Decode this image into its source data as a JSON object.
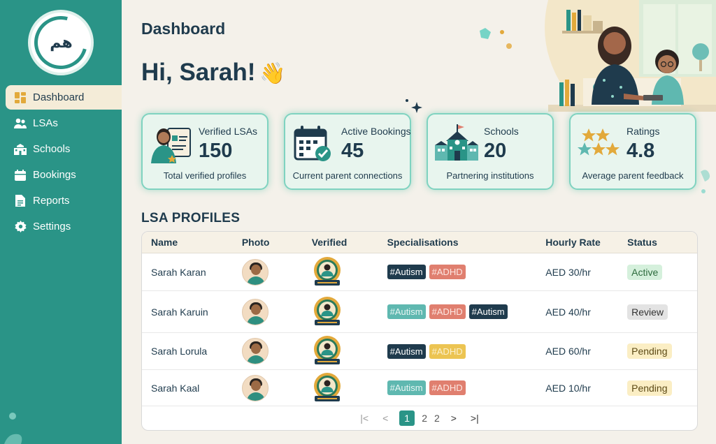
{
  "brand": {
    "logo_text": "هم",
    "brand_color": "#2a9487"
  },
  "sidebar": {
    "items": [
      {
        "label": "Dashboard",
        "icon": "dashboard-icon",
        "active": true
      },
      {
        "label": "LSAs",
        "icon": "users-icon",
        "active": false
      },
      {
        "label": "Schools",
        "icon": "school-icon",
        "active": false
      },
      {
        "label": "Bookings",
        "icon": "calendar-icon",
        "active": false
      },
      {
        "label": "Reports",
        "icon": "document-icon",
        "active": false
      },
      {
        "label": "Settings",
        "icon": "gear-icon",
        "active": false
      }
    ]
  },
  "header": {
    "title": "Dashboard",
    "greeting": "Hi, Sarah!",
    "greeting_emoji": "👋"
  },
  "stats": [
    {
      "label": "Verified LSAs",
      "value": "150",
      "sub": "Total verified profiles",
      "icon": "verified-profile-icon"
    },
    {
      "label": "Active Bookings",
      "value": "45",
      "sub": "Current parent connections",
      "icon": "calendar-check-icon"
    },
    {
      "label": "Schools",
      "value": "20",
      "sub": "Partnering institutions",
      "icon": "school-building-icon"
    },
    {
      "label": "Ratings",
      "value": "4.8",
      "sub": "Average parent feedback",
      "icon": "stars-icon"
    }
  ],
  "profiles": {
    "title": "LSA PROFILES",
    "columns": [
      "Name",
      "Photo",
      "Verified",
      "Specialisations",
      "Hourly Rate",
      "Status"
    ],
    "rows": [
      {
        "name": "Sarah Karan",
        "tags": [
          {
            "text": "#Autism",
            "style": "dark"
          },
          {
            "text": "#ADHD",
            "style": "red"
          }
        ],
        "rate": "AED 30/hr",
        "status": "Active",
        "status_style": "active"
      },
      {
        "name": "Sarah Karuin",
        "tags": [
          {
            "text": "#Autism",
            "style": "teal"
          },
          {
            "text": "#ADHD",
            "style": "red"
          },
          {
            "text": "#Autism",
            "style": "dark"
          }
        ],
        "rate": "AED 40/hr",
        "status": "Review",
        "status_style": "review"
      },
      {
        "name": "Sarah Lorula",
        "tags": [
          {
            "text": "#Autism",
            "style": "dark"
          },
          {
            "text": "#ADHD",
            "style": "yellow"
          }
        ],
        "rate": "AED 60/hr",
        "status": "Pending",
        "status_style": "pending"
      },
      {
        "name": "Sarah Kaal",
        "tags": [
          {
            "text": "#Autism",
            "style": "teal"
          },
          {
            "text": "#ADHD",
            "style": "red"
          }
        ],
        "rate": "AED 10/hr",
        "status": "Pending",
        "status_style": "pending"
      }
    ],
    "pagination": {
      "pages": [
        "1",
        "2",
        "2"
      ],
      "current": "1",
      "first": "|<",
      "prev": "<",
      "next": ">",
      "last": ">|"
    }
  }
}
